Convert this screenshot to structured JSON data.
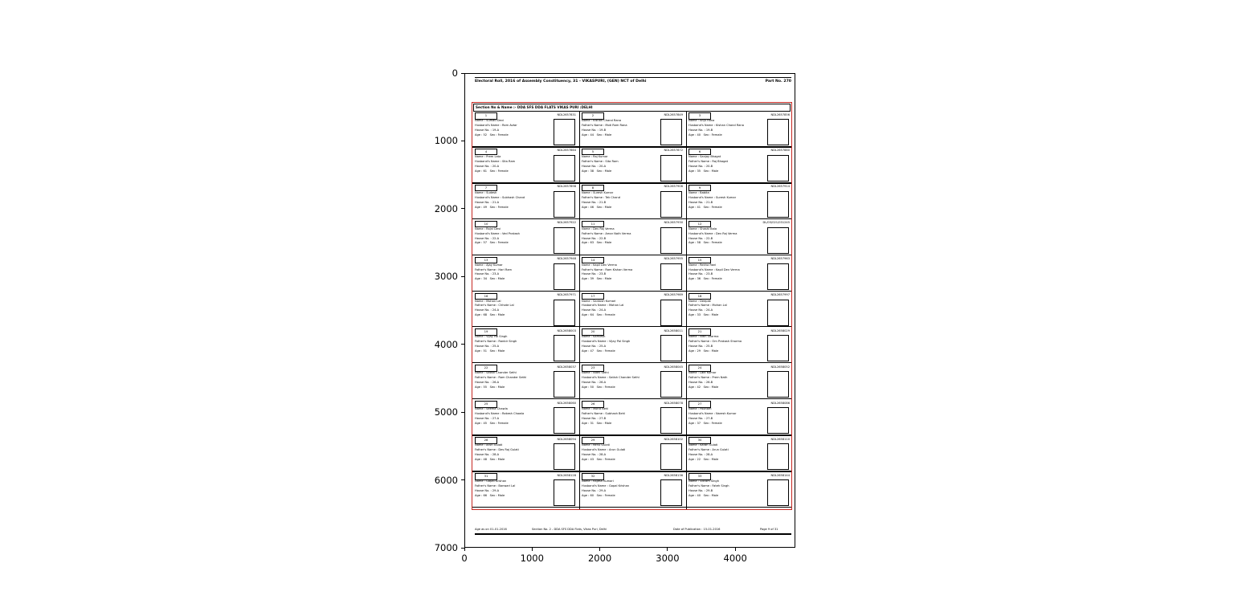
{
  "figure": {
    "x_tick_labels": [
      "0",
      "1000",
      "2000",
      "3000",
      "4000"
    ],
    "y_tick_labels": [
      "0",
      "1000",
      "2000",
      "3000",
      "4000",
      "5000",
      "6000",
      "7000"
    ]
  },
  "document": {
    "header": {
      "left": "Electoral Roll, 2016 of Assembly Constituency, 31 - VIKASPURI, (GEN) NCT of Delhi",
      "right": "Part No. 270"
    },
    "section_header": "Section No & Name :- DDA SFS DDA FLATS VIKAS PURI :DELHI",
    "accent_color": "#c62822",
    "labels": {
      "name": "Name",
      "house": "House No.",
      "age": "Age",
      "sex": "Sex"
    },
    "footer": {
      "age_note": "Age as on 01-01-2016",
      "section_note": "Section No. 2 - DDA SFS DDA Flats, Vikas Puri, Delhi",
      "publication_note": "Date of Publication : 15-01-2016",
      "page": "Page 9 of 31"
    },
    "voters": [
      {
        "sn": "1",
        "epic": "NDL2657831",
        "name": "Sumati Devi",
        "rel_label": "Husband's Name",
        "rel_name": "Ram Avtar",
        "house": "19-A",
        "age": "52",
        "sex": "Female"
      },
      {
        "sn": "2",
        "epic": "NDL2657849",
        "name": "Kishan Chand Rana",
        "rel_label": "Father's Name",
        "rel_name": "Moti Ram Rana",
        "house": "19-B",
        "age": "44",
        "sex": "Male"
      },
      {
        "sn": "3",
        "epic": "NDL2657856",
        "name": "Anju Rana",
        "rel_label": "Husband's Name",
        "rel_name": "Kishan Chand Rana",
        "house": "19-B",
        "age": "40",
        "sex": "Female"
      },
      {
        "sn": "4",
        "epic": "NDL2657864",
        "name": "Prem Lata",
        "rel_label": "Husband's Name",
        "rel_name": "Sita Ram",
        "house": "20-A",
        "age": "61",
        "sex": "Female"
      },
      {
        "sn": "5",
        "epic": "NDL2657872",
        "name": "Raj Kumar",
        "rel_label": "Father's Name",
        "rel_name": "Sita Ram",
        "house": "20-A",
        "age": "38",
        "sex": "Male"
      },
      {
        "sn": "6",
        "epic": "NDL2657880",
        "name": "Sanjay Bhagat",
        "rel_label": "Father's Name",
        "rel_name": "Raj Bhagat",
        "house": "20-B",
        "age": "35",
        "sex": "Male"
      },
      {
        "sn": "7",
        "epic": "NDL2657898",
        "name": "Sudesh",
        "rel_label": "Husband's Name",
        "rel_name": "Subhash Chand",
        "house": "21-A",
        "age": "49",
        "sex": "Female"
      },
      {
        "sn": "8",
        "epic": "NDL2657906",
        "name": "Suresh Kumar",
        "rel_label": "Father's Name",
        "rel_name": "Tek Chand",
        "house": "21-B",
        "age": "46",
        "sex": "Male"
      },
      {
        "sn": "9",
        "epic": "NDL2657914",
        "name": "Babita",
        "rel_label": "Husband's Name",
        "rel_name": "Suresh Kumar",
        "house": "21-B",
        "age": "41",
        "sex": "Female"
      },
      {
        "sn": "10",
        "epic": "NDL2657922",
        "name": "Rajni Devi",
        "rel_label": "Husband's Name",
        "rel_name": "Ved Prakash",
        "house": "22-A",
        "age": "57",
        "sex": "Female"
      },
      {
        "sn": "11",
        "epic": "NDL2657930",
        "name": "Dev Raj Verma",
        "rel_label": "Father's Name",
        "rel_name": "Amar Nath Verma",
        "house": "22-B",
        "age": "63",
        "sex": "Male"
      },
      {
        "sn": "12",
        "epic": "DL/03/021/031245",
        "name": "Shashi Bala",
        "rel_label": "Husband's Name",
        "rel_name": "Dev Raj Verma",
        "house": "22-B",
        "age": "58",
        "sex": "Female"
      },
      {
        "sn": "13",
        "epic": "NDL2657948",
        "name": "Ajay Kumar",
        "rel_label": "Father's Name",
        "rel_name": "Hari Ram",
        "house": "23-A",
        "age": "34",
        "sex": "Male"
      },
      {
        "sn": "14",
        "epic": "NDL2657955",
        "name": "Kapil Dev Verma",
        "rel_label": "Father's Name",
        "rel_name": "Ram Kishan Verma",
        "house": "23-B",
        "age": "39",
        "sex": "Male"
      },
      {
        "sn": "15",
        "epic": "NDL2657963",
        "name": "Rekha Rani",
        "rel_label": "Husband's Name",
        "rel_name": "Kapil Dev Verma",
        "house": "23-B",
        "age": "36",
        "sex": "Female"
      },
      {
        "sn": "16",
        "epic": "NDL2657971",
        "name": "Mohan Lal",
        "rel_label": "Father's Name",
        "rel_name": "Chhote Lal",
        "house": "24-A",
        "age": "68",
        "sex": "Male"
      },
      {
        "sn": "17",
        "epic": "NDL2657989",
        "name": "Santosh Kumari",
        "rel_label": "Husband's Name",
        "rel_name": "Mohan Lal",
        "house": "24-A",
        "age": "64",
        "sex": "Female"
      },
      {
        "sn": "18",
        "epic": "NDL2657997",
        "name": "Deepak",
        "rel_label": "Father's Name",
        "rel_name": "Mohan Lal",
        "house": "24-A",
        "age": "33",
        "sex": "Male"
      },
      {
        "sn": "19",
        "epic": "NDL2658003",
        "name": "Vijay Pal Singh",
        "rel_label": "Father's Name",
        "rel_name": "Ranbir Singh",
        "house": "25-A",
        "age": "51",
        "sex": "Male"
      },
      {
        "sn": "20",
        "epic": "NDL2658011",
        "name": "Kamlesh",
        "rel_label": "Husband's Name",
        "rel_name": "Vijay Pal Singh",
        "house": "25-A",
        "age": "47",
        "sex": "Female"
      },
      {
        "sn": "21",
        "epic": "NDL2658029",
        "name": "Nitin Sharma",
        "rel_label": "Father's Name",
        "rel_name": "Om Prakash Sharma",
        "house": "25-B",
        "age": "29",
        "sex": "Male"
      },
      {
        "sn": "22",
        "epic": "NDL2658037",
        "name": "Satish Chander Sethi",
        "rel_label": "Father's Name",
        "rel_name": "Ram Chander Sethi",
        "house": "26-A",
        "age": "55",
        "sex": "Male"
      },
      {
        "sn": "23",
        "epic": "NDL2658045",
        "name": "Nidhi Sethi",
        "rel_label": "Husband's Name",
        "rel_name": "Satish Chander Sethi",
        "house": "26-A",
        "age": "50",
        "sex": "Female"
      },
      {
        "sn": "24",
        "epic": "NDL2658052",
        "name": "Lalit Kumar",
        "rel_label": "Father's Name",
        "rel_name": "Prem Nath",
        "house": "26-B",
        "age": "42",
        "sex": "Male"
      },
      {
        "sn": "25",
        "epic": "NDL2658060",
        "name": "Seema Chawla",
        "rel_label": "Husband's Name",
        "rel_name": "Rakesh Chawla",
        "house": "27-A",
        "age": "45",
        "sex": "Female"
      },
      {
        "sn": "26",
        "epic": "NDL2658078",
        "name": "Mohit Behl",
        "rel_label": "Father's Name",
        "rel_name": "Subhash Behl",
        "house": "27-B",
        "age": "31",
        "sex": "Male"
      },
      {
        "sn": "27",
        "epic": "NDL2658086",
        "name": "Poonam",
        "rel_label": "Husband's Name",
        "rel_name": "Naresh Kumar",
        "house": "27-B",
        "age": "37",
        "sex": "Female"
      },
      {
        "sn": "28",
        "epic": "NDL2658094",
        "name": "Arun Gulati",
        "rel_label": "Father's Name",
        "rel_name": "Des Raj Gulati",
        "house": "28-A",
        "age": "48",
        "sex": "Male"
      },
      {
        "sn": "29",
        "epic": "NDL2658102",
        "name": "Renu Gulati",
        "rel_label": "Husband's Name",
        "rel_name": "Arun Gulati",
        "house": "28-A",
        "age": "43",
        "sex": "Female"
      },
      {
        "sn": "30",
        "epic": "NDL2658110",
        "name": "Karan Gulati",
        "rel_label": "Father's Name",
        "rel_name": "Arun Gulati",
        "house": "28-A",
        "age": "22",
        "sex": "Male"
      },
      {
        "sn": "31",
        "epic": "NDL2658128",
        "name": "Gopal Krishan",
        "rel_label": "Father's Name",
        "rel_name": "Banwari Lal",
        "house": "29-A",
        "age": "66",
        "sex": "Male"
      },
      {
        "sn": "32",
        "epic": "NDL2658136",
        "name": "Rajesh Kumari",
        "rel_label": "Husband's Name",
        "rel_name": "Gopal Krishan",
        "house": "29-A",
        "age": "60",
        "sex": "Female"
      },
      {
        "sn": "33",
        "epic": "NDL2658144",
        "name": "Vikram Singh",
        "rel_label": "Father's Name",
        "rel_name": "Fateh Singh",
        "house": "29-B",
        "age": "40",
        "sex": "Male"
      }
    ]
  }
}
